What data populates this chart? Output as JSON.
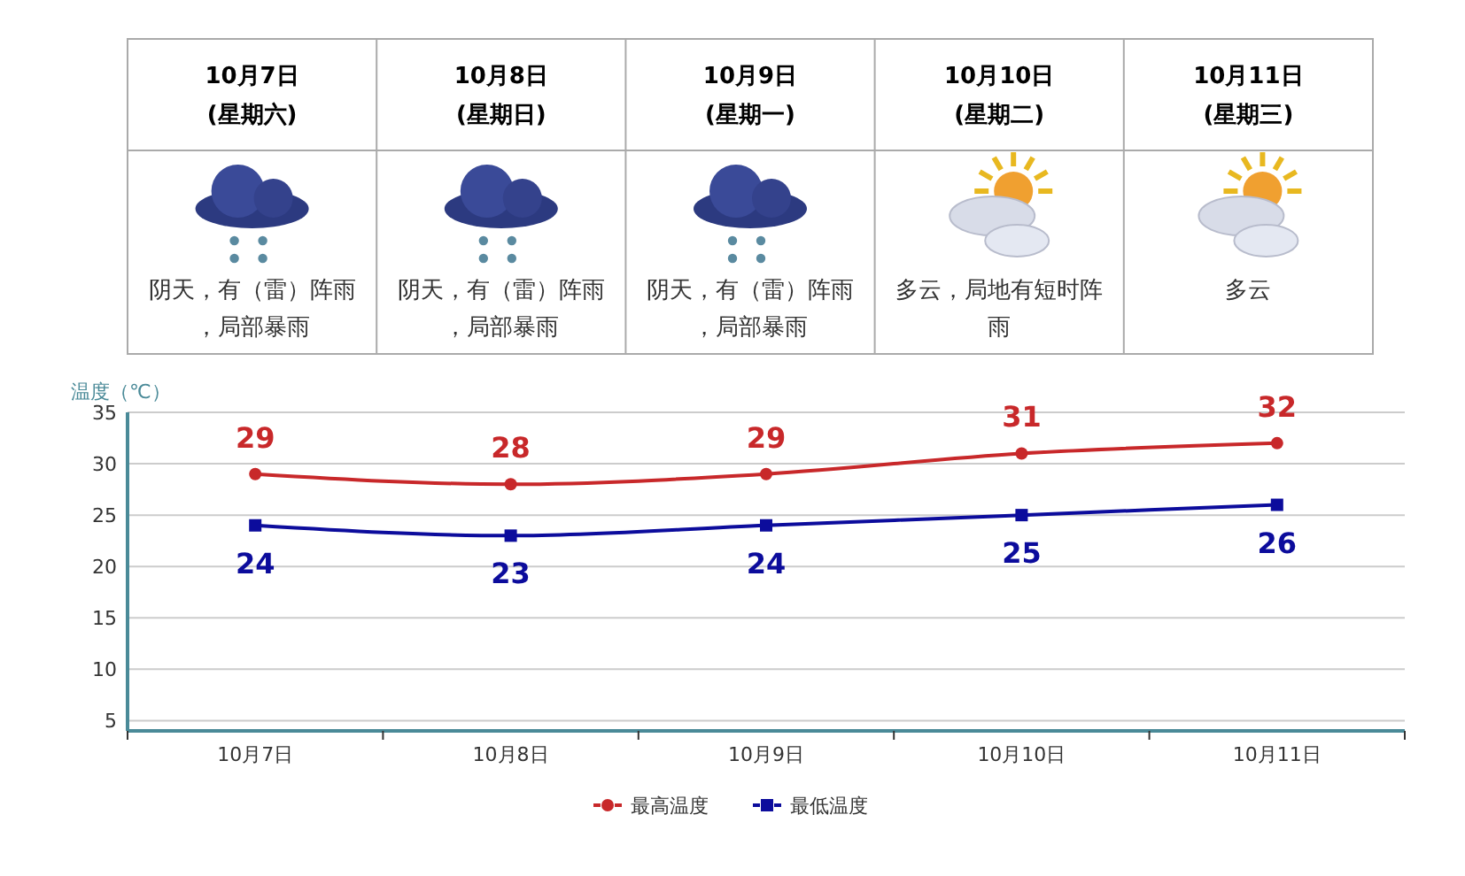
{
  "chart_data": [
    {
      "type": "other",
      "annotations": [
        "10月7日",
        "(星期六)",
        "阴天，有（雷）阵雨，局部暴雨",
        "10月8日",
        "(星期日)",
        "阴天，有（雷）阵雨，局部暴雨",
        "10月9日",
        "(星期一)",
        "阴天，有（雷）阵雨，局部暴雨",
        "10月10日",
        "(星期二)",
        "多云，局地有短时阵雨",
        "10月11日",
        "(星期三)",
        "多云"
      ]
    },
    {
      "type": "line",
      "ylabel": "温度（℃）",
      "categories": [
        "10月7日",
        "10月8日",
        "10月9日",
        "10月10日",
        "10月11日"
      ],
      "series": [
        {
          "name": "最高温度",
          "color": "#c8282a",
          "marker": "circle",
          "values": [
            29,
            28,
            29,
            31,
            32
          ]
        },
        {
          "name": "最低温度",
          "color": "#0c0c9c",
          "marker": "square",
          "values": [
            24,
            23,
            24,
            25,
            26
          ]
        }
      ],
      "ylim": [
        4,
        35
      ],
      "yticks": [
        5,
        10,
        15,
        20,
        25,
        30,
        35
      ],
      "grid": "y",
      "legend": "bottom",
      "data_labels": true,
      "line_style": "solid"
    }
  ]
}
